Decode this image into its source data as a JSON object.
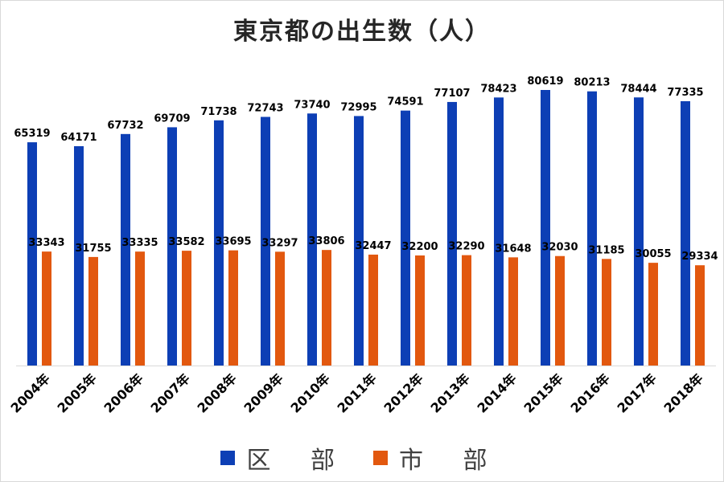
{
  "chart_data": {
    "type": "bar",
    "title": "東京都の出生数（人）",
    "categories": [
      "2004年",
      "2005年",
      "2006年",
      "2007年",
      "2008年",
      "2009年",
      "2010年",
      "2011年",
      "2012年",
      "2013年",
      "2014年",
      "2015年",
      "2016年",
      "2017年",
      "2018年"
    ],
    "series": [
      {
        "name": "区 部",
        "color": "#0d3fb5",
        "values": [
          65319,
          64171,
          67732,
          69709,
          71738,
          72743,
          73740,
          72995,
          74591,
          77107,
          78423,
          80619,
          80213,
          78444,
          77335
        ]
      },
      {
        "name": "市 部",
        "color": "#e2580f",
        "values": [
          33343,
          31755,
          33335,
          33582,
          33695,
          33297,
          33806,
          32447,
          32200,
          32290,
          31648,
          32030,
          31185,
          30055,
          29334
        ]
      }
    ],
    "ylim": [
      0,
      82000
    ],
    "grid": false,
    "legend": "bottom"
  }
}
